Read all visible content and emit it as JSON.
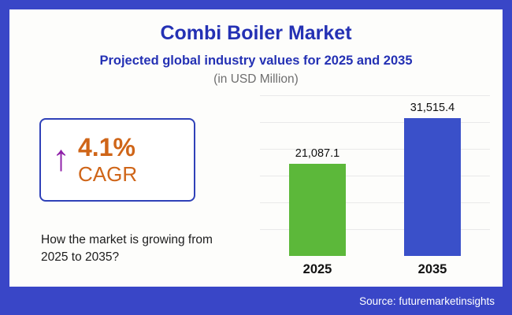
{
  "header": {
    "title": "Combi Boiler Market",
    "subtitle": "Projected global industry values for 2025 and 2035",
    "unit": "(in USD Million)"
  },
  "cagr": {
    "value": "4.1%",
    "label": "CAGR",
    "arrow_icon": "up-arrow",
    "arrow_color": "#8e1fa8",
    "text_color": "#cf6518"
  },
  "note": "How the market is growing from 2025 to 2035?",
  "footer": {
    "source": "Source: futuremarketinsights"
  },
  "colors": {
    "frame_blue": "#3946c7",
    "title_blue": "#2431b4",
    "bar_green": "#5cb83a",
    "bar_blue": "#3a50c9"
  },
  "chart_data": {
    "type": "bar",
    "title": "Combi Boiler Market — Projected global industry values (USD Million)",
    "categories": [
      "2025",
      "2035"
    ],
    "values": [
      21087.1,
      31515.4
    ],
    "value_labels": [
      "21,087.1",
      "31,515.4"
    ],
    "bar_colors": [
      "#5cb83a",
      "#3a50c9"
    ],
    "xlabel": "",
    "ylabel": "USD Million",
    "ylim": [
      0,
      32000
    ],
    "grid": true,
    "legend": false
  }
}
